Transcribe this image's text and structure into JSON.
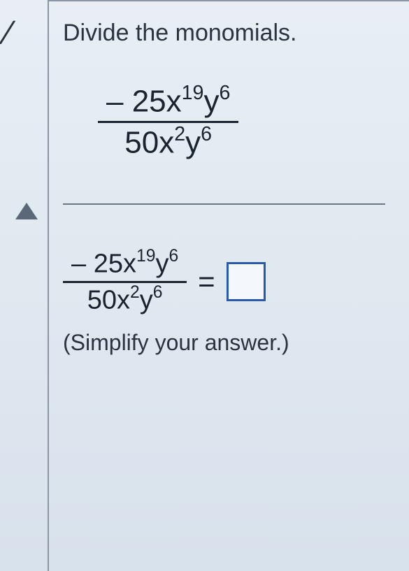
{
  "instruction": "Divide the monomials.",
  "problem": {
    "numerator": {
      "coefficient": "– 25",
      "var1": "x",
      "exp1": "19",
      "var2": "y",
      "exp2": "6"
    },
    "denominator": {
      "coefficient": "50",
      "var1": "x",
      "exp1": "2",
      "var2": "y",
      "exp2": "6"
    }
  },
  "answer": {
    "numerator": {
      "coefficient": "– 25",
      "var1": "x",
      "exp1": "19",
      "var2": "y",
      "exp2": "6"
    },
    "denominator": {
      "coefficient": "50",
      "var1": "x",
      "exp1": "2",
      "var2": "y",
      "exp2": "6"
    },
    "equals": "=",
    "value": ""
  },
  "note": "(Simplify your answer.)",
  "colors": {
    "text": "#2a3440",
    "box_border": "#2a5aa8",
    "divider": "#6a7888",
    "border": "#8a96a6",
    "triangle": "#5a6878"
  }
}
